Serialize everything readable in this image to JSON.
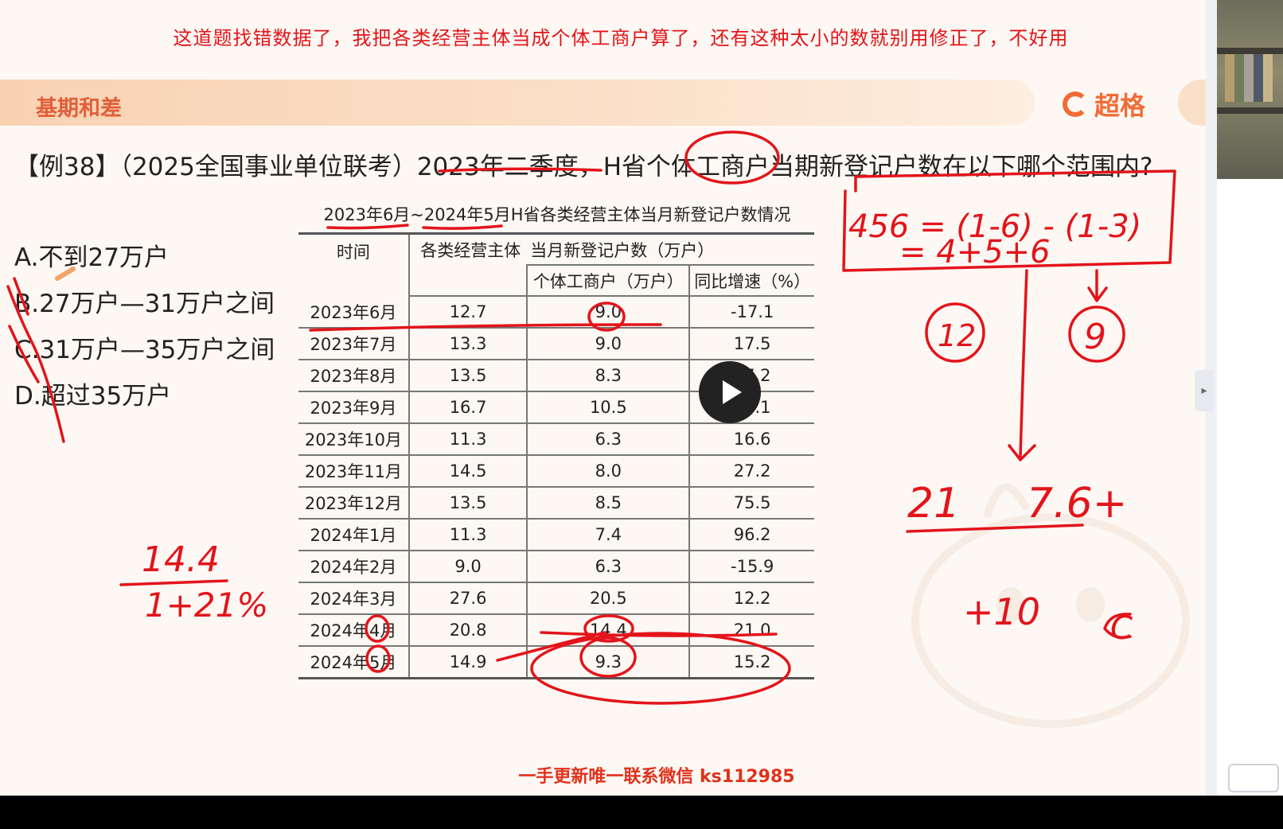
{
  "notice": "这道题找错数据了，我把各类经营主体当成个体工商户算了，还有这种太小的数就别用修正了，不好用",
  "topic": "基期和差",
  "brand": "超格",
  "question": "【例38】（2025全国事业单位联考）2023年二季度，H省个体工商户当期新登记户数在以下哪个范围内?",
  "options": [
    "A.不到27万户",
    "B.27万户—31万户之间",
    "C.31万户—35万户之间",
    "D.超过35万户"
  ],
  "table": {
    "caption": "2023年6月~2024年5月H省各类经营主体当月新登记户数情况",
    "header_time": "时间",
    "header_all": "各类经营主体",
    "header_group": "当月新登记户数（万户）",
    "header_individual": "个体工商户（万户）",
    "header_growth": "同比增速（%）",
    "rows": [
      {
        "time": "2023年6月",
        "all": "12.7",
        "individual": "9.0",
        "growth": "-17.1"
      },
      {
        "time": "2023年7月",
        "all": "13.3",
        "individual": "9.0",
        "growth": "17.5"
      },
      {
        "time": "2023年8月",
        "all": "13.5",
        "individual": "8.3",
        "growth": "37.2"
      },
      {
        "time": "2023年9月",
        "all": "16.7",
        "individual": "10.5",
        "growth": "64.1"
      },
      {
        "time": "2023年10月",
        "all": "11.3",
        "individual": "6.3",
        "growth": "16.6"
      },
      {
        "time": "2023年11月",
        "all": "14.5",
        "individual": "8.0",
        "growth": "27.2"
      },
      {
        "time": "2023年12月",
        "all": "13.5",
        "individual": "8.5",
        "growth": "75.5"
      },
      {
        "time": "2024年1月",
        "all": "11.3",
        "individual": "7.4",
        "growth": "96.2"
      },
      {
        "time": "2024年2月",
        "all": "9.0",
        "individual": "6.3",
        "growth": "-15.9"
      },
      {
        "time": "2024年3月",
        "all": "27.6",
        "individual": "20.5",
        "growth": "12.2"
      },
      {
        "time": "2024年4月",
        "all": "20.8",
        "individual": "14.4",
        "growth": "21.0"
      },
      {
        "time": "2024年5月",
        "all": "14.9",
        "individual": "9.3",
        "growth": "15.2"
      }
    ]
  },
  "watermark": "一手更新唯一联系微信 ks112985",
  "handwriting": {
    "formula_1": "456 = (1-6) - (1-3)",
    "formula_2": "= 4+5+6",
    "circled_left": "12",
    "circled_right": "9",
    "result_left": "21",
    "result_right": "7.6+",
    "plus_ten": "+10",
    "arrow_c": "C",
    "fraction_top": "14.4",
    "fraction_bottom": "1+21%"
  },
  "colors": {
    "ink": "#e3141b",
    "accent": "#f26b36",
    "topic": "#e0603a"
  },
  "icons": {
    "play": "play-icon",
    "pencil": "pencil-icon",
    "logo": "brand-logo-icon",
    "collapse": "chevron-right-icon"
  }
}
